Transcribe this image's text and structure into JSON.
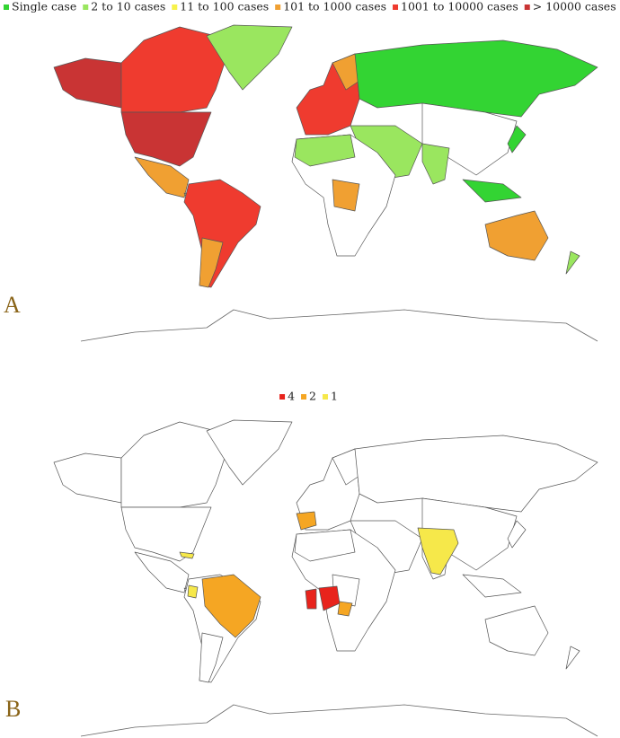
{
  "panels": [
    {
      "label": "A",
      "legend": [
        {
          "label": "Single case",
          "color": "#33d433"
        },
        {
          "label": "2 to 10 cases",
          "color": "#9ae65f"
        },
        {
          "label": "11 to 100 cases",
          "color": "#f7f24a"
        },
        {
          "label": "101 to 1000 cases",
          "color": "#f0a032"
        },
        {
          "label": "1001 to 10000 cases",
          "color": "#ef3b2f"
        },
        {
          "label": "> 10000 cases",
          "color": "#c93434"
        }
      ]
    },
    {
      "label": "B",
      "legend": [
        {
          "label": "4",
          "color": "#e8231c"
        },
        {
          "label": "2",
          "color": "#f5a623"
        },
        {
          "label": "1",
          "color": "#f6e84a"
        }
      ]
    }
  ]
}
